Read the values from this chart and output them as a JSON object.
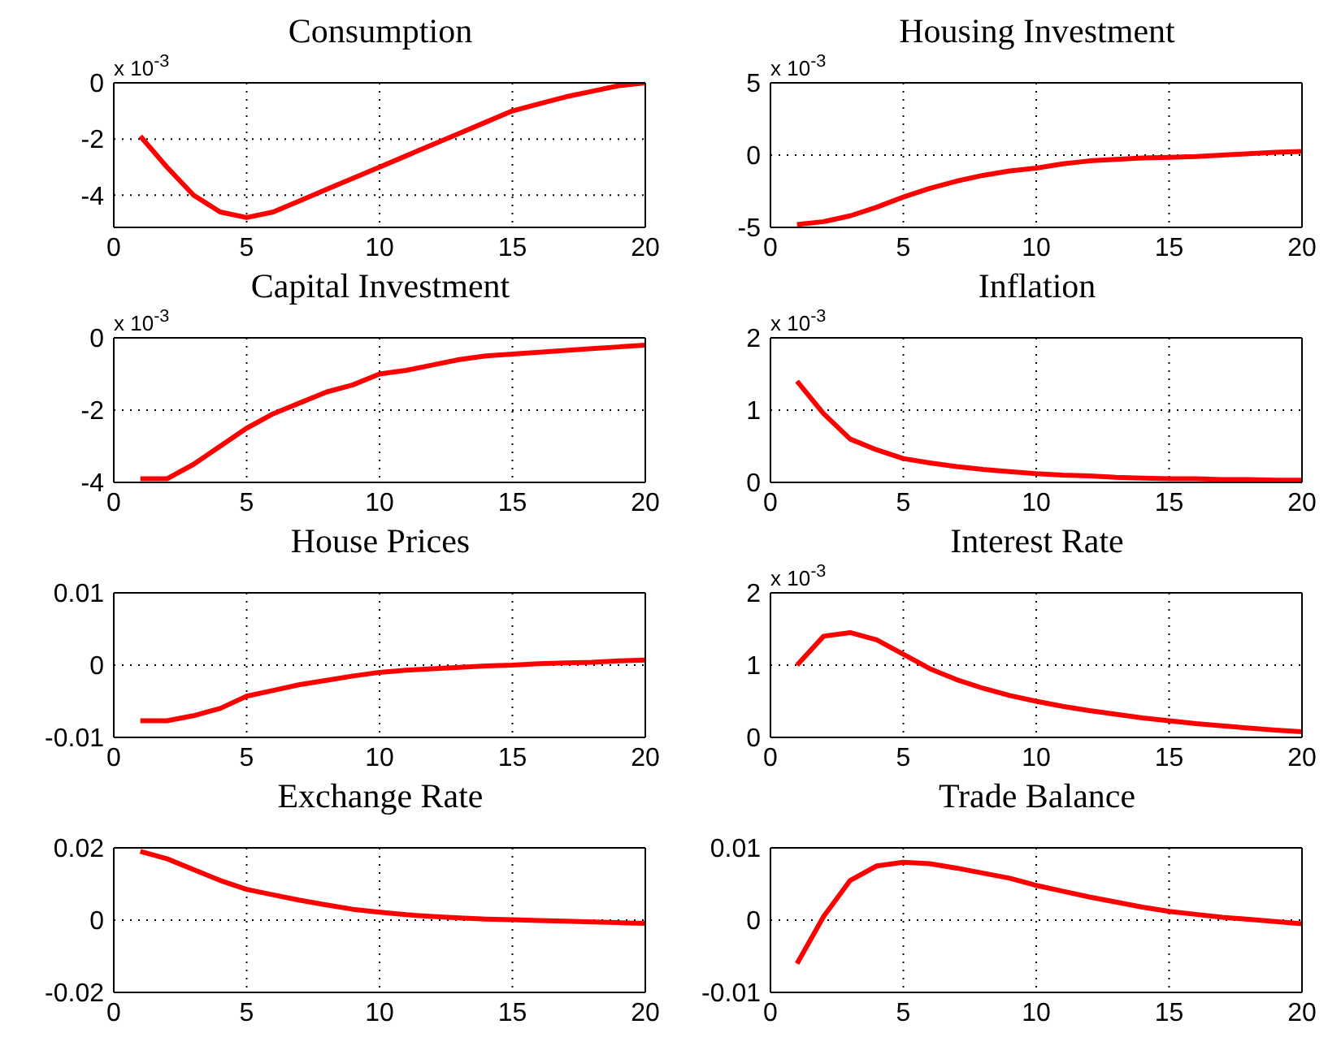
{
  "chart_data": [
    {
      "type": "line",
      "title": "Consumption",
      "annotations": [
        "x 10$^{-3}$"
      ],
      "x": [
        1,
        2,
        3,
        4,
        5,
        6,
        7,
        8,
        9,
        10,
        11,
        12,
        13,
        14,
        15,
        16,
        17,
        18,
        19,
        20
      ],
      "series": [
        {
          "color": "#ff0000",
          "values": [
            -1.9,
            -3.0,
            -4.0,
            -4.6,
            -4.8,
            -4.6,
            -4.2,
            -3.8,
            -3.4,
            -3.0,
            -2.6,
            -2.2,
            -1.8,
            -1.4,
            -1.0,
            -0.75,
            -0.5,
            -0.3,
            -0.1,
            0.0
          ]
        }
      ],
      "xlim": [
        0,
        20
      ],
      "xticks": [
        0,
        5,
        10,
        15,
        20
      ],
      "ylim": [
        -5.15,
        0
      ],
      "yticks": [
        -4,
        -2,
        0
      ],
      "grid": true
    },
    {
      "type": "line",
      "title": "Housing Investment",
      "annotations": [
        "x 10$^{-3}$"
      ],
      "x": [
        1,
        2,
        3,
        4,
        5,
        6,
        7,
        8,
        9,
        10,
        11,
        12,
        13,
        14,
        15,
        16,
        17,
        18,
        19,
        20
      ],
      "series": [
        {
          "color": "#ff0000",
          "values": [
            -4.8,
            -4.6,
            -4.2,
            -3.6,
            -2.9,
            -2.3,
            -1.8,
            -1.4,
            -1.1,
            -0.9,
            -0.6,
            -0.4,
            -0.3,
            -0.2,
            -0.15,
            -0.1,
            0,
            0.1,
            0.2,
            0.25
          ]
        }
      ],
      "xlim": [
        0,
        20
      ],
      "xticks": [
        0,
        5,
        10,
        15,
        20
      ],
      "ylim": [
        -5,
        5
      ],
      "yticks": [
        -5,
        0,
        5
      ],
      "grid": true
    },
    {
      "type": "line",
      "title": "Capital Investment",
      "annotations": [
        "x 10$^{-3}$"
      ],
      "x": [
        1,
        2,
        3,
        4,
        5,
        6,
        7,
        8,
        9,
        10,
        11,
        12,
        13,
        14,
        15,
        16,
        17,
        18,
        19,
        20
      ],
      "series": [
        {
          "color": "#ff0000",
          "values": [
            -3.9,
            -3.9,
            -3.5,
            -3.0,
            -2.5,
            -2.1,
            -1.8,
            -1.5,
            -1.3,
            -1.0,
            -0.9,
            -0.75,
            -0.6,
            -0.5,
            -0.45,
            -0.4,
            -0.35,
            -0.3,
            -0.25,
            -0.2
          ]
        }
      ],
      "xlim": [
        0,
        20
      ],
      "xticks": [
        0,
        5,
        10,
        15,
        20
      ],
      "ylim": [
        -4,
        0
      ],
      "yticks": [
        -4,
        -2,
        0
      ],
      "grid": true
    },
    {
      "type": "line",
      "title": "Inflation",
      "annotations": [
        "x 10$^{-3}$"
      ],
      "x": [
        1,
        2,
        3,
        4,
        5,
        6,
        7,
        8,
        9,
        10,
        11,
        12,
        13,
        14,
        15,
        16,
        17,
        18,
        19,
        20
      ],
      "series": [
        {
          "color": "#ff0000",
          "values": [
            1.4,
            0.95,
            0.6,
            0.45,
            0.33,
            0.27,
            0.22,
            0.18,
            0.15,
            0.12,
            0.1,
            0.09,
            0.07,
            0.06,
            0.05,
            0.05,
            0.04,
            0.04,
            0.03,
            0.03
          ]
        }
      ],
      "xlim": [
        0,
        20
      ],
      "xticks": [
        0,
        5,
        10,
        15,
        20
      ],
      "ylim": [
        0,
        2
      ],
      "yticks": [
        0,
        1,
        2
      ],
      "grid": true
    },
    {
      "type": "line",
      "title": "House Prices",
      "x": [
        1,
        2,
        3,
        4,
        5,
        6,
        7,
        8,
        9,
        10,
        11,
        12,
        13,
        14,
        15,
        16,
        17,
        18,
        19,
        20
      ],
      "series": [
        {
          "color": "#ff0000",
          "values": [
            -0.0077,
            -0.0077,
            -0.007,
            -0.006,
            -0.0043,
            -0.0035,
            -0.0027,
            -0.0021,
            -0.0015,
            -0.001,
            -0.0007,
            -0.0005,
            -0.0003,
            -0.0001,
            0,
            0.0002,
            0.0003,
            0.0004,
            0.0006,
            0.0007
          ]
        }
      ],
      "xlim": [
        0,
        20
      ],
      "xticks": [
        0,
        5,
        10,
        15,
        20
      ],
      "ylim": [
        -0.01,
        0.01
      ],
      "yticks": [
        -0.01,
        0,
        0.01
      ],
      "grid": true
    },
    {
      "type": "line",
      "title": "Interest Rate",
      "annotations": [
        "x 10$^{-3}$"
      ],
      "x": [
        1,
        2,
        3,
        4,
        5,
        6,
        7,
        8,
        9,
        10,
        11,
        12,
        13,
        14,
        15,
        16,
        17,
        18,
        19,
        20
      ],
      "series": [
        {
          "color": "#ff0000",
          "values": [
            1.0,
            1.4,
            1.45,
            1.35,
            1.15,
            0.95,
            0.8,
            0.68,
            0.58,
            0.5,
            0.43,
            0.37,
            0.32,
            0.27,
            0.23,
            0.19,
            0.16,
            0.13,
            0.1,
            0.08
          ]
        }
      ],
      "xlim": [
        0,
        20
      ],
      "xticks": [
        0,
        5,
        10,
        15,
        20
      ],
      "ylim": [
        0,
        2
      ],
      "yticks": [
        0,
        1,
        2
      ],
      "grid": true
    },
    {
      "type": "line",
      "title": "Exchange Rate",
      "x": [
        1,
        2,
        3,
        4,
        5,
        6,
        7,
        8,
        9,
        10,
        11,
        12,
        13,
        14,
        15,
        16,
        17,
        18,
        19,
        20
      ],
      "series": [
        {
          "color": "#ff0000",
          "values": [
            0.019,
            0.017,
            0.014,
            0.011,
            0.0085,
            0.007,
            0.0055,
            0.0042,
            0.003,
            0.0022,
            0.0015,
            0.001,
            0.0006,
            0.0003,
            0.0001,
            -0.0001,
            -0.0003,
            -0.0005,
            -0.0007,
            -0.0009
          ]
        }
      ],
      "xlim": [
        0,
        20
      ],
      "xticks": [
        0,
        5,
        10,
        15,
        20
      ],
      "ylim": [
        -0.02,
        0.02
      ],
      "yticks": [
        -0.02,
        0,
        0.02
      ],
      "grid": true
    },
    {
      "type": "line",
      "title": "Trade Balance",
      "x": [
        1,
        2,
        3,
        4,
        5,
        6,
        7,
        8,
        9,
        10,
        11,
        12,
        13,
        14,
        15,
        16,
        17,
        18,
        19,
        20
      ],
      "series": [
        {
          "color": "#ff0000",
          "values": [
            -0.006,
            0.0005,
            0.0055,
            0.0075,
            0.008,
            0.0078,
            0.0072,
            0.0065,
            0.0058,
            0.0048,
            0.004,
            0.0032,
            0.0025,
            0.0018,
            0.0012,
            0.0008,
            0.0004,
            0.0001,
            -0.0002,
            -0.0005
          ]
        }
      ],
      "xlim": [
        0,
        20
      ],
      "xticks": [
        0,
        5,
        10,
        15,
        20
      ],
      "ylim": [
        -0.01,
        0.01
      ],
      "yticks": [
        -0.01,
        0,
        0.01
      ],
      "grid": true
    }
  ]
}
